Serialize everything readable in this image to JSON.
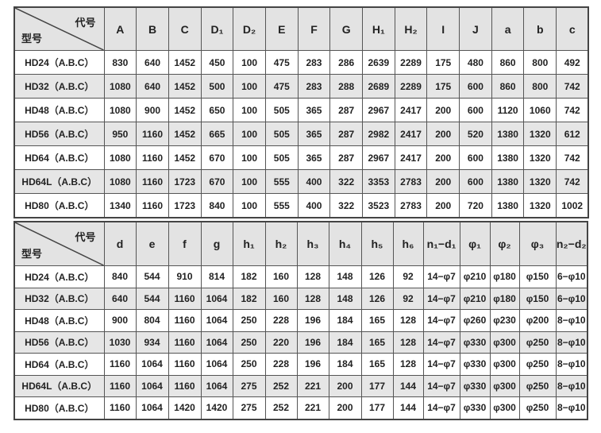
{
  "corner": {
    "top": "代号",
    "bottom": "型号"
  },
  "table1": {
    "headers": [
      "A",
      "B",
      "C",
      "D₁",
      "D₂",
      "E",
      "F",
      "G",
      "H₁",
      "H₂",
      "I",
      "J",
      "a",
      "b",
      "c"
    ],
    "rows": [
      [
        "HD24（A.B.C）",
        "830",
        "640",
        "1452",
        "450",
        "100",
        "475",
        "283",
        "286",
        "2639",
        "2289",
        "175",
        "480",
        "860",
        "800",
        "492"
      ],
      [
        "HD32（A.B.C）",
        "1080",
        "640",
        "1452",
        "500",
        "100",
        "475",
        "283",
        "288",
        "2689",
        "2289",
        "175",
        "600",
        "860",
        "800",
        "742"
      ],
      [
        "HD48（A.B.C）",
        "1080",
        "900",
        "1452",
        "650",
        "100",
        "505",
        "365",
        "287",
        "2967",
        "2417",
        "200",
        "600",
        "1120",
        "1060",
        "742"
      ],
      [
        "HD56（A.B.C）",
        "950",
        "1160",
        "1452",
        "665",
        "100",
        "505",
        "365",
        "287",
        "2982",
        "2417",
        "200",
        "520",
        "1380",
        "1320",
        "612"
      ],
      [
        "HD64（A.B.C）",
        "1080",
        "1160",
        "1452",
        "670",
        "100",
        "505",
        "365",
        "287",
        "2967",
        "2417",
        "200",
        "600",
        "1380",
        "1320",
        "742"
      ],
      [
        "HD64L（A.B.C）",
        "1080",
        "1160",
        "1723",
        "670",
        "100",
        "555",
        "400",
        "322",
        "3353",
        "2783",
        "200",
        "600",
        "1380",
        "1320",
        "742"
      ],
      [
        "HD80（A.B.C）",
        "1340",
        "1160",
        "1723",
        "840",
        "100",
        "555",
        "400",
        "322",
        "3523",
        "2783",
        "200",
        "720",
        "1380",
        "1320",
        "1002"
      ]
    ]
  },
  "table2": {
    "headers": [
      "d",
      "e",
      "f",
      "g",
      "h₁",
      "h₂",
      "h₃",
      "h₄",
      "h₅",
      "h₆",
      "n₁−d₁",
      "φ₁",
      "φ₂",
      "φ₃",
      "n₂−d₂"
    ],
    "rows": [
      [
        "HD24（A.B.C）",
        "840",
        "544",
        "910",
        "814",
        "182",
        "160",
        "128",
        "148",
        "126",
        "92",
        "14−φ7",
        "φ210",
        "φ180",
        "φ150",
        "6−φ10"
      ],
      [
        "HD32（A.B.C）",
        "640",
        "544",
        "1160",
        "1064",
        "182",
        "160",
        "128",
        "148",
        "126",
        "92",
        "14−φ7",
        "φ210",
        "φ180",
        "φ150",
        "6−φ10"
      ],
      [
        "HD48（A.B.C）",
        "900",
        "804",
        "1160",
        "1064",
        "250",
        "228",
        "196",
        "184",
        "165",
        "128",
        "14−φ7",
        "φ260",
        "φ230",
        "φ200",
        "8−φ10"
      ],
      [
        "HD56（A.B.C）",
        "1030",
        "934",
        "1160",
        "1064",
        "250",
        "220",
        "196",
        "184",
        "165",
        "128",
        "14−φ7",
        "φ330",
        "φ300",
        "φ250",
        "8−φ10"
      ],
      [
        "HD64（A.B.C）",
        "1160",
        "1064",
        "1160",
        "1064",
        "250",
        "228",
        "196",
        "184",
        "165",
        "128",
        "14−φ7",
        "φ330",
        "φ300",
        "φ250",
        "8−φ10"
      ],
      [
        "HD64L（A.B.C）",
        "1160",
        "1064",
        "1160",
        "1064",
        "275",
        "252",
        "221",
        "200",
        "177",
        "144",
        "14−φ7",
        "φ330",
        "φ300",
        "φ250",
        "8−φ10"
      ],
      [
        "HD80（A.B.C）",
        "1160",
        "1064",
        "1420",
        "1420",
        "275",
        "252",
        "221",
        "200",
        "177",
        "144",
        "14−φ7",
        "φ330",
        "φ300",
        "φ250",
        "8−φ10"
      ]
    ]
  }
}
